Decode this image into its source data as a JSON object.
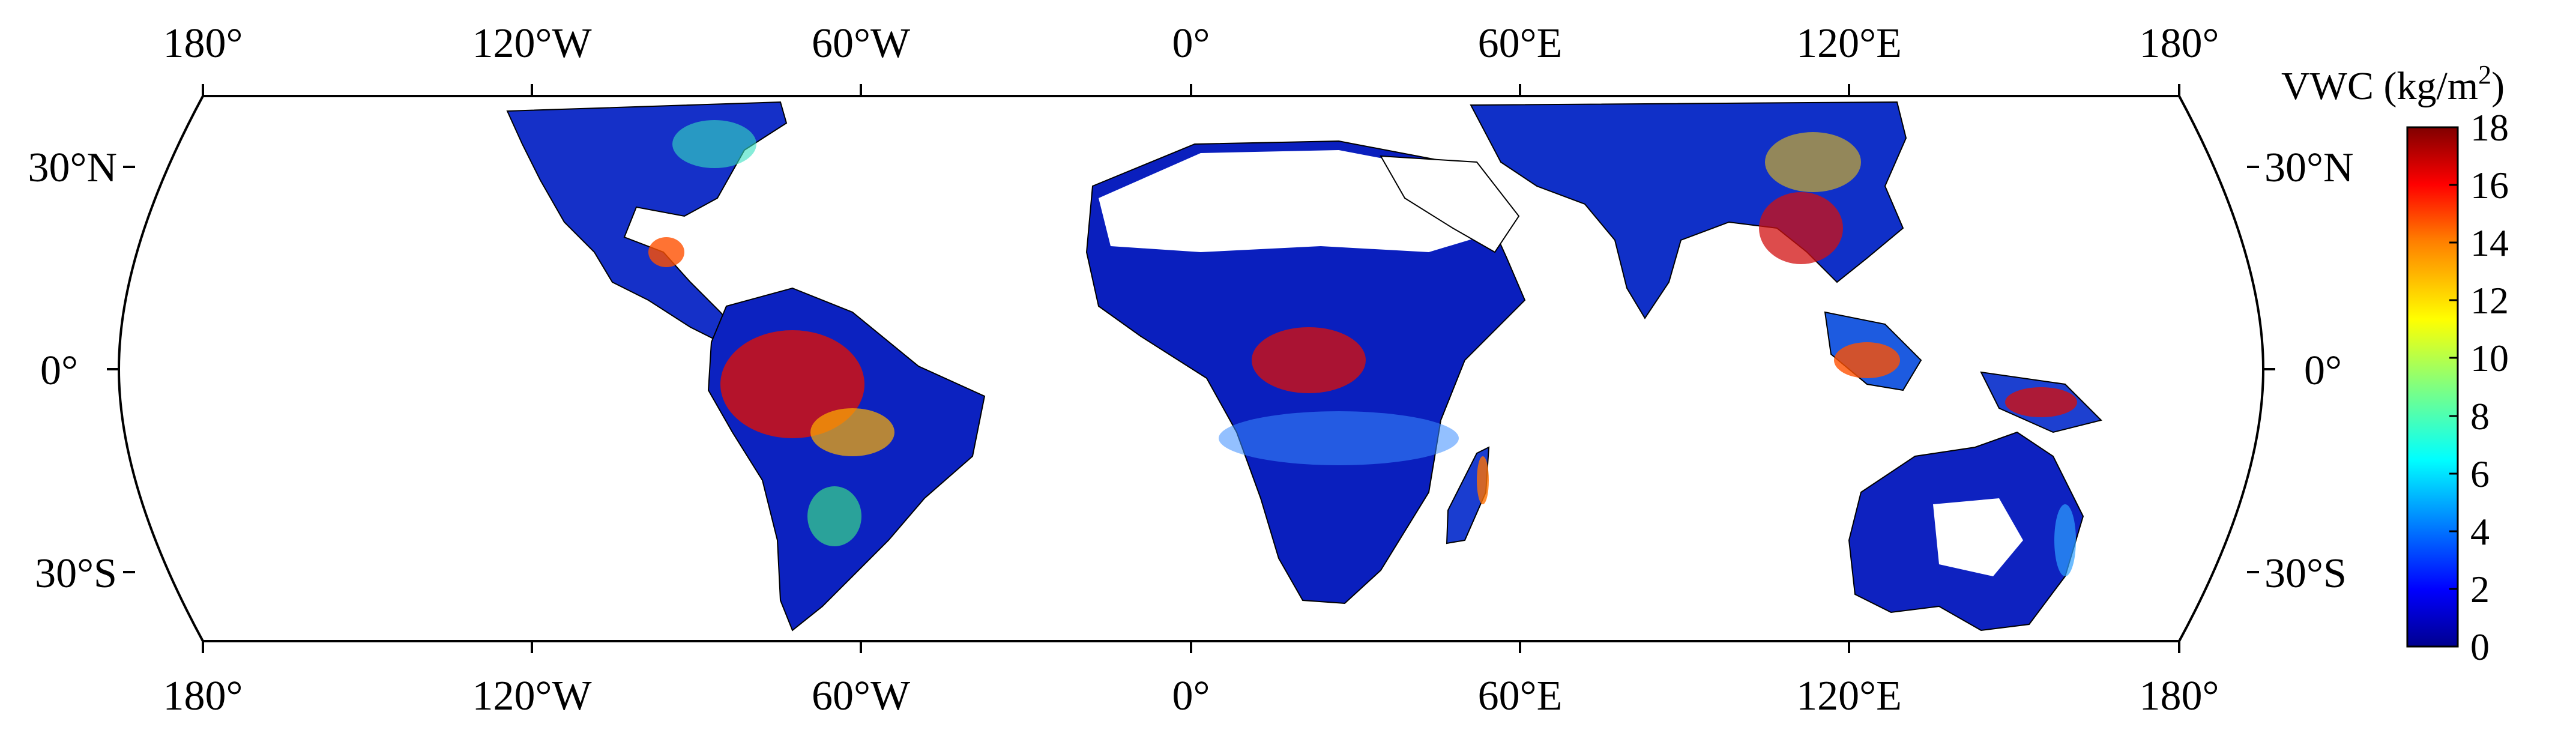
{
  "map": {
    "projection": "Robinson (cropped 40°S–40°N)",
    "top_ticks": [
      "180°",
      "120°W",
      "60°W",
      "0°",
      "60°E",
      "120°E",
      "180°"
    ],
    "bottom_ticks": [
      "180°",
      "120°W",
      "60°W",
      "0°",
      "60°E",
      "120°E",
      "180°"
    ],
    "left_ticks": [
      "30°N",
      "0°",
      "30°S"
    ],
    "right_ticks": [
      "30°N",
      "0°",
      "30°S"
    ]
  },
  "colorbar": {
    "title": "VWC (kg/m",
    "title_sup": "2",
    "title_close": ")",
    "ticks": [
      "18",
      "16",
      "14",
      "12",
      "10",
      "8",
      "6",
      "4",
      "2",
      "0"
    ],
    "min": 0,
    "max": 18,
    "colors": [
      "#00008f",
      "#0000ff",
      "#0080ff",
      "#00ffff",
      "#80ff80",
      "#ffff00",
      "#ff8000",
      "#ff0000",
      "#800000"
    ]
  },
  "legend_colors": {
    "low": "#00008f",
    "mid_low": "#0080ff",
    "mid": "#3fd28a",
    "mid_high": "#ffd000",
    "high": "#d50000"
  }
}
